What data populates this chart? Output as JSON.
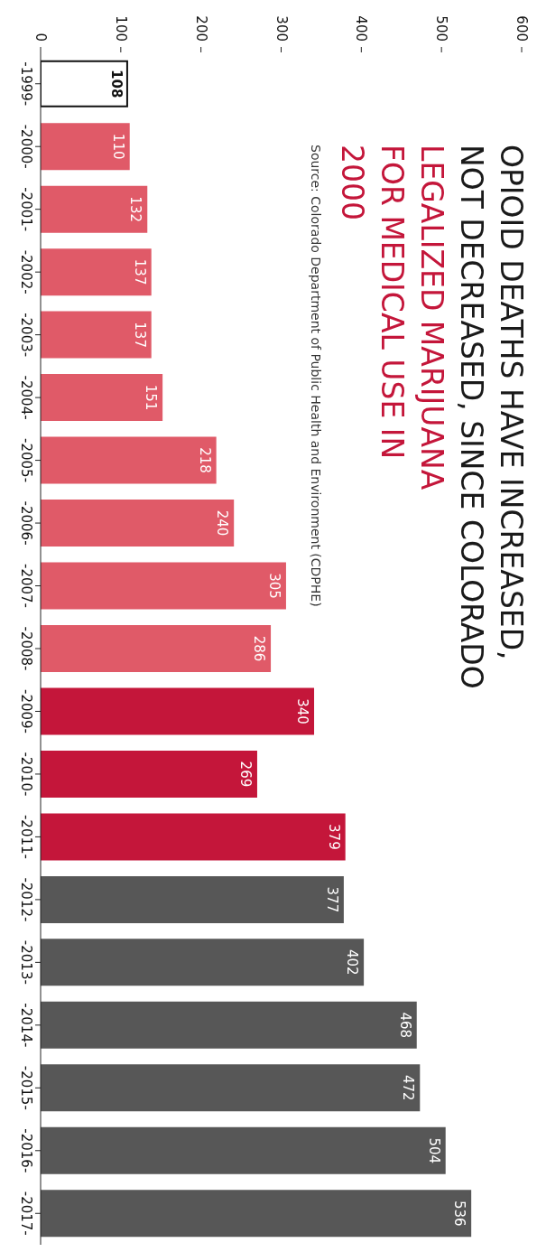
{
  "chart_data": {
    "type": "bar",
    "orientation": "horizontal",
    "title": "OPIOID DEATHS HAVE INCREASED, NOT DECREASED, SINCE COLORADO",
    "subtitle": "LEGALIZED MARIJUANA FOR MEDICAL USE IN 2000",
    "annotations": [
      "Source: Colorado Department of Public Health and Environment (CDPHE)"
    ],
    "categories": [
      "-1999-",
      "-2000-",
      "-2001-",
      "-2002-",
      "-2003-",
      "-2004-",
      "-2005-",
      "-2006-",
      "-2007-",
      "-2008-",
      "-2009-",
      "-2010-",
      "-2011-",
      "-2012-",
      "-2013-",
      "-2014-",
      "-2015-",
      "-2016-",
      "-2017-"
    ],
    "values": [
      108,
      110,
      132,
      137,
      137,
      151,
      218,
      240,
      305,
      286,
      340,
      269,
      379,
      377,
      402,
      468,
      472,
      504,
      536
    ],
    "colors": [
      "#ffffff",
      "#e05a68",
      "#e05a68",
      "#e05a68",
      "#e05a68",
      "#e05a68",
      "#e05a68",
      "#e05a68",
      "#e05a68",
      "#e05a68",
      "#c4163a",
      "#c4163a",
      "#c4163a",
      "#575757",
      "#575757",
      "#575757",
      "#575757",
      "#575757",
      "#575757"
    ],
    "xlim": [
      0,
      600
    ],
    "xticks": [
      0,
      100,
      200,
      300,
      400,
      500,
      600
    ],
    "data_labels": true
  }
}
